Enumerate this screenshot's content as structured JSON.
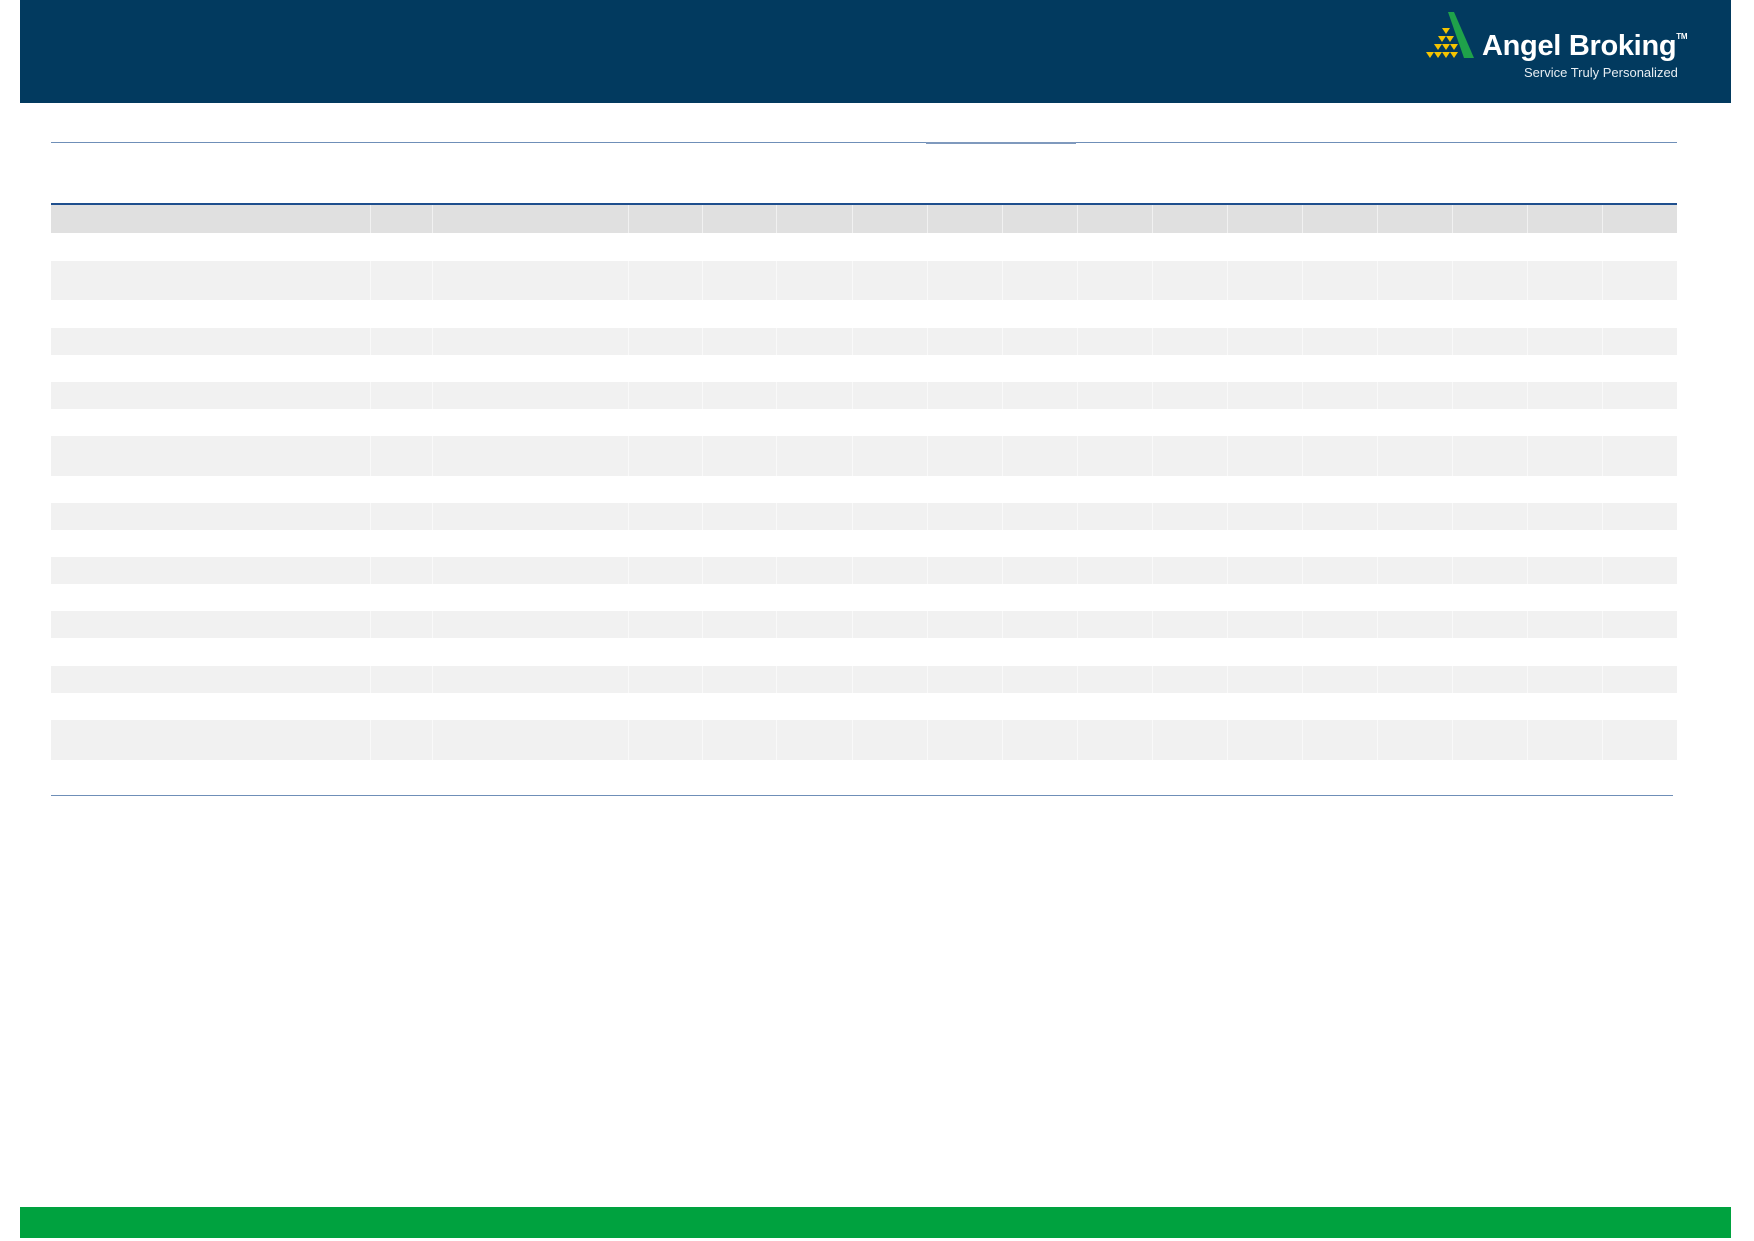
{
  "brand": {
    "name": "Angel Broking",
    "trademark": "TM",
    "tagline": "Service Truly Personalized",
    "colors": {
      "header": "#023a5f",
      "footer_bar": "#00a23f",
      "logo_green": "#1fa24a",
      "logo_gold": "#f5c400"
    }
  },
  "table": {
    "columns": 17,
    "rows": 20
  }
}
